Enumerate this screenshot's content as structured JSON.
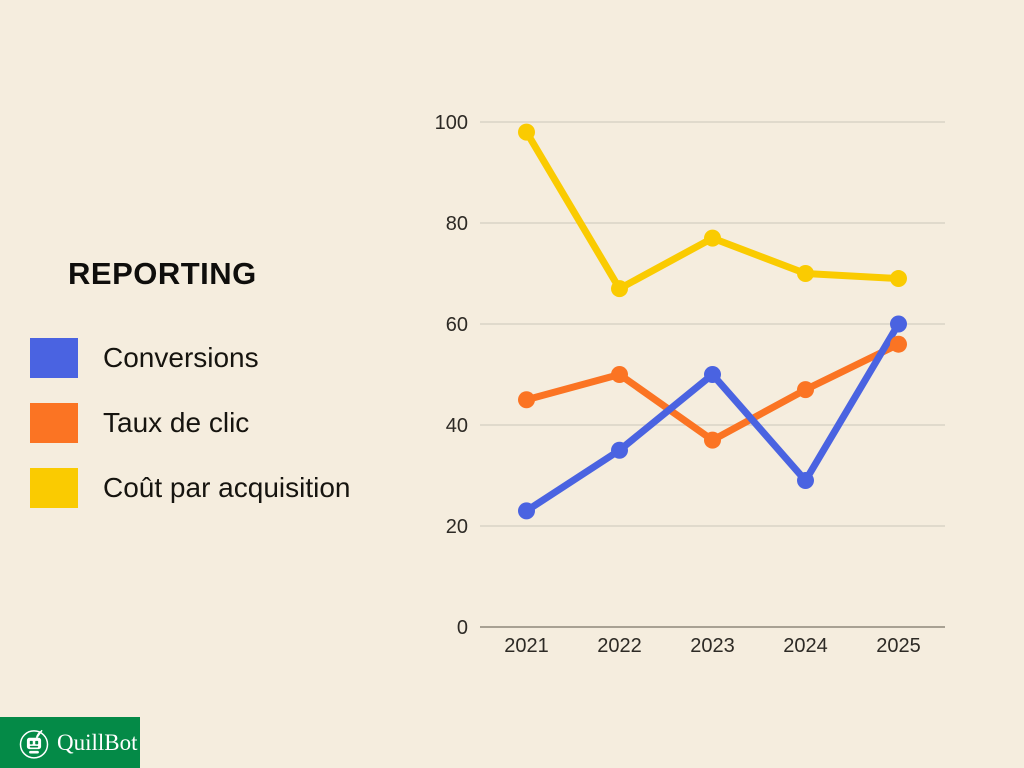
{
  "page": {
    "background": "#F5EDDE"
  },
  "report": {
    "title": "REPORTING"
  },
  "chart_data": {
    "type": "line",
    "x": [
      "2021",
      "2022",
      "2023",
      "2024",
      "2025"
    ],
    "series": [
      {
        "name": "Conversions",
        "color": "#4A63E1",
        "values": [
          23,
          35,
          50,
          29,
          60
        ]
      },
      {
        "name": "Taux de clic",
        "color": "#FB7423",
        "values": [
          45,
          50,
          37,
          47,
          56
        ]
      },
      {
        "name": "Coût par acquisition",
        "color": "#FACB01",
        "values": [
          98,
          67,
          77,
          70,
          69
        ]
      }
    ],
    "ylim": [
      0,
      100
    ],
    "yticks": [
      0,
      20,
      40,
      60,
      80,
      100
    ],
    "grid": true,
    "grid_color": "#DAD3C5",
    "axis_color": "#8E887A",
    "tick_label_color": "#2D2A25",
    "legend_position": "left",
    "marker": "circle",
    "title": "",
    "xlabel": "",
    "ylabel": ""
  },
  "watermark": {
    "brand": "QuillBot",
    "brand_color": "#048A47"
  }
}
